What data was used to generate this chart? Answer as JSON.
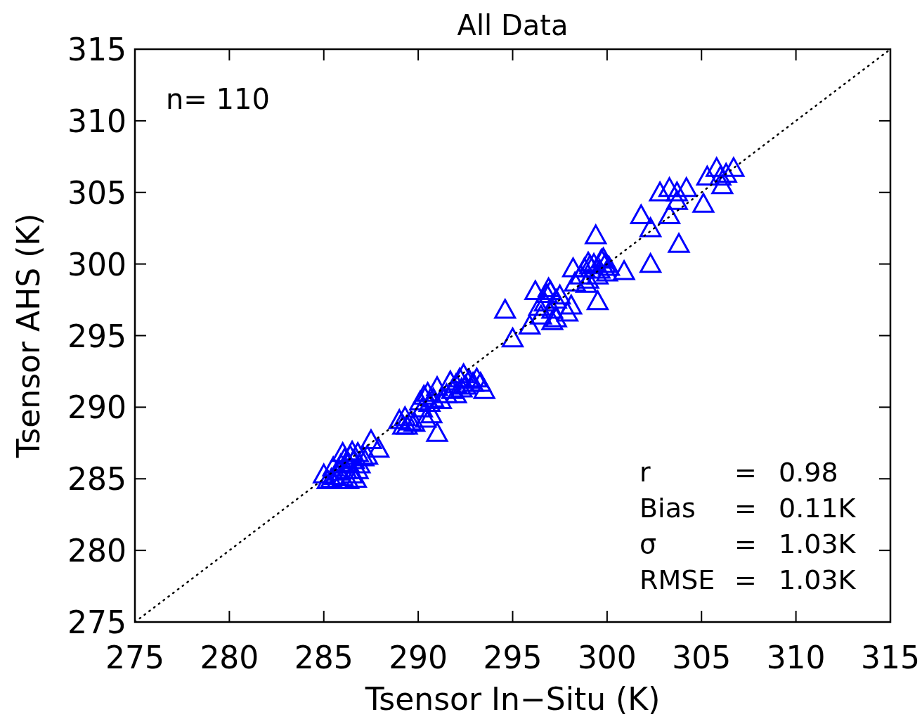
{
  "chart_data": {
    "type": "scatter",
    "title": "All Data",
    "xlabel": "Tsensor In−Situ (K)",
    "ylabel": "Tsensor AHS (K)",
    "xlim": [
      275,
      315
    ],
    "ylim": [
      275,
      315
    ],
    "xticks": [
      275,
      280,
      285,
      290,
      295,
      300,
      305,
      310,
      315
    ],
    "yticks": [
      275,
      280,
      285,
      290,
      295,
      300,
      305,
      310,
      315
    ],
    "grid": false,
    "annotations": [
      "n= 110",
      "r = 0.98",
      "Bias = 0.11K",
      "σ = 1.03K",
      "RMSE = 1.03K"
    ],
    "series": [
      {
        "color": "#0000ff",
        "marker": "triangle",
        "x": [
          285.0,
          285.2,
          285.4,
          285.6,
          285.8,
          285.5,
          285.9,
          286.0,
          286.1,
          286.3,
          286.2,
          286.4,
          286.5,
          286.6,
          286.7,
          286.8,
          286.3,
          285.7,
          286.9,
          287.1,
          286.0,
          286.5,
          286.8,
          287.3,
          287.5,
          287.9,
          289.0,
          289.2,
          289.4,
          289.6,
          289.3,
          289.8,
          290.1,
          290.3,
          290.5,
          290.2,
          290.6,
          290.8,
          291.0,
          291.2,
          290.7,
          290.4,
          291.0,
          291.5,
          291.8,
          292.0,
          292.2,
          292.4,
          292.5,
          292.7,
          292.9,
          293.1,
          293.3,
          293.5,
          292.3,
          292.0,
          291.7,
          294.6,
          295.0,
          295.9,
          296.2,
          296.5,
          296.7,
          296.8,
          297.0,
          297.1,
          297.3,
          297.5,
          297.1,
          297.3,
          296.4,
          297.9,
          298.1,
          296.9,
          298.2,
          298.3,
          298.6,
          298.8,
          299.0,
          299.1,
          299.3,
          299.5,
          299.7,
          299.9,
          300.1,
          299.6,
          299.0,
          298.9,
          299.4,
          299.5,
          300.9,
          299.8,
          300.0,
          301.8,
          302.3,
          302.3,
          302.8,
          303.3,
          303.3,
          303.8,
          303.7,
          303.7,
          304.2,
          305.1,
          305.3,
          305.8,
          306.1,
          306.0,
          306.3,
          306.7
        ],
        "values": [
          285.3,
          284.9,
          285.0,
          285.2,
          285.5,
          285.8,
          286.0,
          285.1,
          286.4,
          286.1,
          285.6,
          286.6,
          285.3,
          286.3,
          285.0,
          286.8,
          284.9,
          284.9,
          286.0,
          286.5,
          286.8,
          286.9,
          285.6,
          286.6,
          287.7,
          287.1,
          289.1,
          288.7,
          288.7,
          289.0,
          289.3,
          288.9,
          290.4,
          290.8,
          291.0,
          289.9,
          290.3,
          290.6,
          291.4,
          290.5,
          289.5,
          289.2,
          288.2,
          290.9,
          291.2,
          291.6,
          292.0,
          292.3,
          291.5,
          291.9,
          291.7,
          292.0,
          291.7,
          291.2,
          291.3,
          290.9,
          291.8,
          296.8,
          294.8,
          295.7,
          298.1,
          296.4,
          297.3,
          297.9,
          298.1,
          296.8,
          297.5,
          297.8,
          296.0,
          296.2,
          297.0,
          296.6,
          297.1,
          298.3,
          299.7,
          298.7,
          299.2,
          299.7,
          298.9,
          299.9,
          300.0,
          299.2,
          300.3,
          300.0,
          299.8,
          299.6,
          300.1,
          298.6,
          302.0,
          297.4,
          299.5,
          300.4,
          299.4,
          303.4,
          302.5,
          300.0,
          305.0,
          305.3,
          303.4,
          301.4,
          304.4,
          305.0,
          305.3,
          304.2,
          306.1,
          306.7,
          305.5,
          306.1,
          306.3,
          306.7
        ]
      },
      {
        "type": "line",
        "color": "#000000",
        "marker": "none",
        "line_style": "dotted",
        "x": [
          275,
          315
        ],
        "values": [
          275,
          315
        ]
      }
    ]
  }
}
